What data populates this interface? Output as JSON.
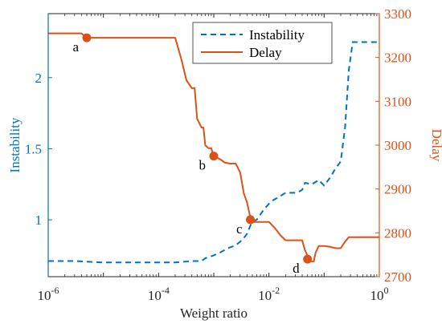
{
  "chart_data": {
    "type": "line",
    "xscale": "log",
    "xlim": [
      1e-06,
      1
    ],
    "xlabel": "Weight ratio",
    "x_ticks": [
      {
        "value": 1e-06,
        "base": "10",
        "exp": "-6"
      },
      {
        "value": 0.0001,
        "base": "10",
        "exp": "-4"
      },
      {
        "value": 0.01,
        "base": "10",
        "exp": "-2"
      },
      {
        "value": 1,
        "base": "10",
        "exp": "0"
      }
    ],
    "left_axis": {
      "label": "Instability",
      "lim": [
        0.6,
        2.45
      ],
      "ticks": [
        1,
        1.5,
        2
      ],
      "tick_labels": [
        "1",
        "1.5",
        "2"
      ],
      "color": "#0072BD"
    },
    "right_axis": {
      "label": "Delay",
      "lim": [
        2700,
        3300
      ],
      "ticks": [
        2700,
        2800,
        2900,
        3000,
        3100,
        3200,
        3300
      ],
      "tick_labels": [
        "2700",
        "2800",
        "2900",
        "3000",
        "3100",
        "3200",
        "3300"
      ],
      "color": "#D95319"
    },
    "series": [
      {
        "name": "Instability",
        "axis": "left",
        "style": "dashed",
        "color": "#0072BD",
        "x": [
          1e-06,
          3e-06,
          1e-05,
          3e-05,
          0.0001,
          0.0002,
          0.0004,
          0.0006,
          0.0007,
          0.001,
          0.0013,
          0.0018,
          0.0025,
          0.0033,
          0.004,
          0.0045,
          0.005,
          0.006,
          0.008,
          0.011,
          0.015,
          0.02,
          0.032,
          0.04,
          0.045,
          0.06,
          0.08,
          0.1,
          0.13,
          0.16,
          0.2,
          0.24,
          0.28,
          0.33,
          0.4,
          1
        ],
        "y": [
          0.71,
          0.71,
          0.7,
          0.7,
          0.7,
          0.7,
          0.71,
          0.71,
          0.73,
          0.75,
          0.77,
          0.8,
          0.82,
          0.86,
          0.9,
          0.95,
          0.99,
          1.0,
          1.07,
          1.13,
          1.16,
          1.19,
          1.19,
          1.21,
          1.26,
          1.25,
          1.28,
          1.24,
          1.3,
          1.36,
          1.41,
          1.65,
          2.05,
          2.25,
          2.25,
          2.25
        ]
      },
      {
        "name": "Delay",
        "axis": "right",
        "style": "solid",
        "color": "#D95319",
        "x": [
          1e-06,
          4e-06,
          5e-06,
          1e-05,
          3e-05,
          0.0001,
          0.00015,
          0.0002,
          0.00026,
          0.00032,
          0.0004,
          0.00045,
          0.0005,
          0.0006,
          0.00065,
          0.0007,
          0.0008,
          0.0009,
          0.001,
          0.0013,
          0.0016,
          0.002,
          0.0025,
          0.003,
          0.0035,
          0.004,
          0.0046,
          0.0052,
          0.006,
          0.008,
          0.01,
          0.013,
          0.016,
          0.02,
          0.03,
          0.04,
          0.045,
          0.05,
          0.055,
          0.06,
          0.065,
          0.07,
          0.08,
          0.1,
          0.13,
          0.16,
          0.2,
          0.24,
          0.28,
          0.33,
          0.4,
          1
        ],
        "y": [
          3255,
          3255,
          3245,
          3245,
          3245,
          3245,
          3245,
          3245,
          3195,
          3148,
          3130,
          3130,
          3060,
          3040,
          3040,
          3000,
          2993,
          2993,
          2975,
          2968,
          2960,
          2958,
          2958,
          2938,
          2890,
          2870,
          2835,
          2825,
          2825,
          2825,
          2825,
          2810,
          2795,
          2783,
          2783,
          2783,
          2760,
          2748,
          2735,
          2735,
          2735,
          2755,
          2770,
          2770,
          2768,
          2765,
          2765,
          2780,
          2790,
          2790,
          2790,
          2790
        ]
      }
    ],
    "annotations": [
      {
        "label": "a",
        "x": 5e-06,
        "y": 3245
      },
      {
        "label": "b",
        "x": 0.001,
        "y": 2975
      },
      {
        "label": "c",
        "x": 0.0046,
        "y": 2830
      },
      {
        "label": "d",
        "x": 0.05,
        "y": 2740
      }
    ],
    "legend": {
      "placement": "top-right",
      "entries": [
        "Instability",
        "Delay"
      ]
    },
    "grid": false
  }
}
